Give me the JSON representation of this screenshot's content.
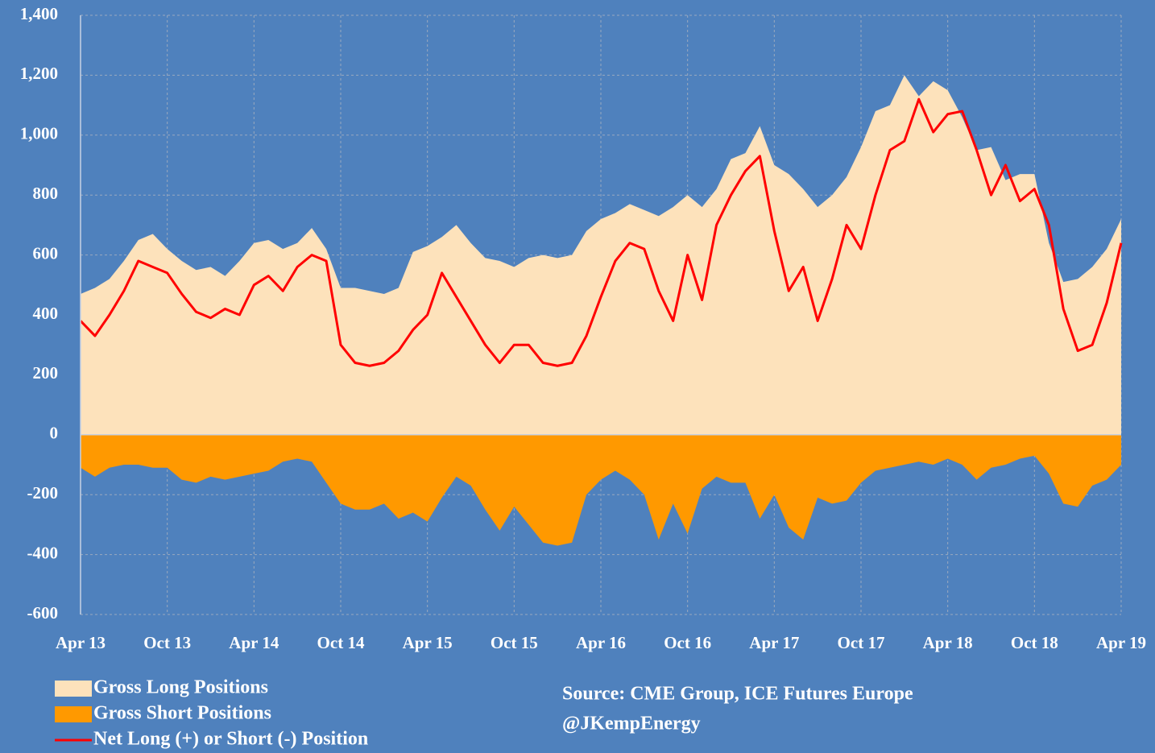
{
  "chart_data": {
    "type": "area",
    "categories": [
      "Apr 13",
      null,
      null,
      null,
      null,
      null,
      "Oct 13",
      null,
      null,
      null,
      null,
      null,
      "Apr 14",
      null,
      null,
      null,
      null,
      null,
      "Oct 14",
      null,
      null,
      null,
      null,
      null,
      "Apr 15",
      null,
      null,
      null,
      null,
      null,
      "Oct 15",
      null,
      null,
      null,
      null,
      null,
      "Apr 16",
      null,
      null,
      null,
      null,
      null,
      "Oct 16",
      null,
      null,
      null,
      null,
      null,
      "Apr 17",
      null,
      null,
      null,
      null,
      null,
      "Oct 17",
      null,
      null,
      null,
      null,
      null,
      "Apr 18",
      null,
      null,
      null,
      null,
      null,
      "Oct 18",
      null,
      null,
      null,
      null,
      null,
      "Apr 19"
    ],
    "series": [
      {
        "name": "Gross Long Positions",
        "color": "#fde2bb",
        "kind": "area",
        "values": [
          470,
          490,
          520,
          580,
          650,
          670,
          620,
          580,
          550,
          560,
          530,
          580,
          640,
          650,
          620,
          640,
          690,
          620,
          490,
          490,
          480,
          470,
          490,
          610,
          630,
          660,
          700,
          640,
          590,
          580,
          560,
          590,
          600,
          590,
          600,
          680,
          720,
          740,
          770,
          750,
          730,
          760,
          800,
          760,
          820,
          920,
          940,
          1030,
          900,
          870,
          820,
          760,
          800,
          860,
          960,
          1080,
          1100,
          1200,
          1130,
          1180,
          1150,
          1060,
          950,
          960,
          850,
          870,
          870,
          640,
          510,
          520,
          560,
          620,
          720
        ]
      },
      {
        "name": "Gross Short Positions",
        "color": "#ff9900",
        "kind": "area",
        "values": [
          -110,
          -140,
          -110,
          -100,
          -100,
          -110,
          -110,
          -150,
          -160,
          -140,
          -150,
          -140,
          -130,
          -120,
          -90,
          -80,
          -90,
          -160,
          -230,
          -250,
          -250,
          -230,
          -280,
          -260,
          -290,
          -210,
          -140,
          -170,
          -250,
          -320,
          -240,
          -300,
          -360,
          -370,
          -360,
          -200,
          -150,
          -120,
          -150,
          -200,
          -350,
          -230,
          -330,
          -180,
          -140,
          -160,
          -160,
          -280,
          -200,
          -310,
          -350,
          -210,
          -230,
          -220,
          -160,
          -120,
          -110,
          -100,
          -90,
          -100,
          -80,
          -100,
          -150,
          -110,
          -100,
          -80,
          -70,
          -130,
          -230,
          -240,
          -170,
          -150,
          -100
        ]
      },
      {
        "name": "Net Long (+) or Short (-) Position",
        "color": "#ff0000",
        "kind": "line",
        "values": [
          380,
          330,
          400,
          480,
          580,
          560,
          540,
          470,
          410,
          390,
          420,
          400,
          500,
          530,
          480,
          560,
          600,
          580,
          300,
          240,
          230,
          240,
          280,
          350,
          400,
          540,
          460,
          380,
          300,
          240,
          300,
          300,
          240,
          230,
          240,
          330,
          460,
          580,
          640,
          620,
          480,
          380,
          600,
          450,
          700,
          800,
          880,
          930,
          680,
          480,
          560,
          380,
          520,
          700,
          620,
          800,
          950,
          980,
          1120,
          1010,
          1070,
          1080,
          950,
          800,
          900,
          780,
          820,
          700,
          420,
          280,
          300,
          440,
          640
        ]
      }
    ],
    "ylim": [
      -600,
      1400
    ],
    "yticks": [
      -600,
      -400,
      -200,
      0,
      200,
      400,
      600,
      800,
      {
        "value": 1000,
        "label": "1,000"
      },
      {
        "value": 1200,
        "label": "1,200"
      },
      {
        "value": 1400,
        "label": "1,400"
      }
    ],
    "grid": true,
    "legend": "bottom-left",
    "annotations": [
      "Source:  CME Group, ICE Futures Europe",
      "@JKempEnergy"
    ]
  }
}
